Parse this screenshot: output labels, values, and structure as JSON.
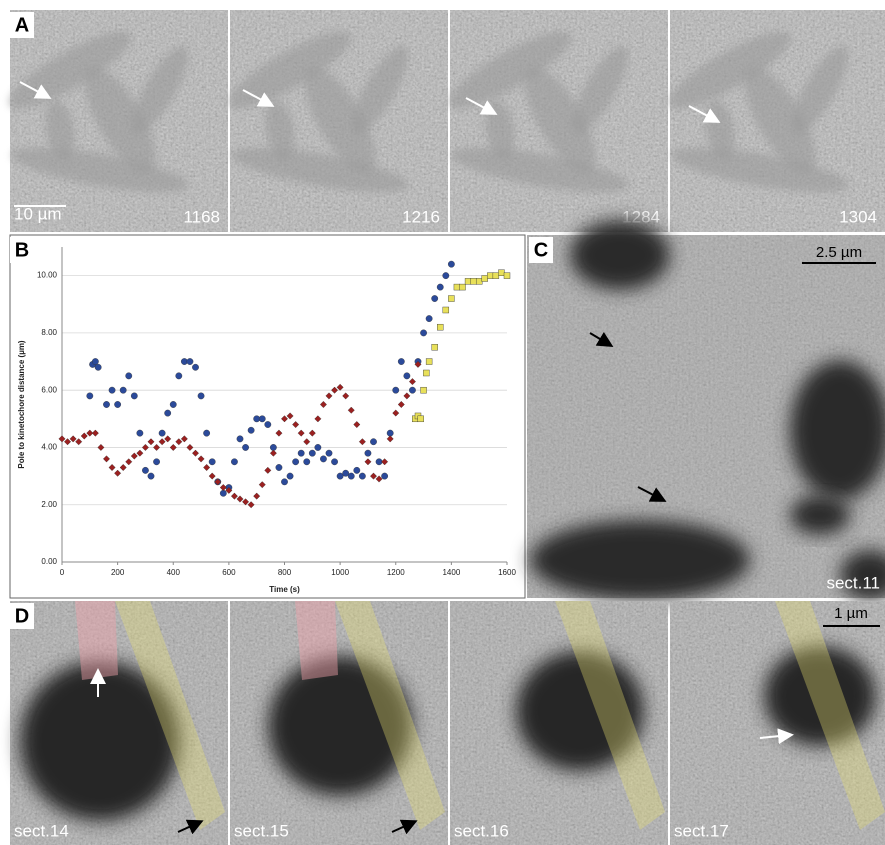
{
  "panels": {
    "a": {
      "label": "A",
      "scale_bar": "10 µm",
      "frames": [
        "1168",
        "1216",
        "1284",
        "1304"
      ]
    },
    "b": {
      "label": "B"
    },
    "c": {
      "label": "C",
      "scale_bar": "2.5 µm",
      "section": "sect.11"
    },
    "d": {
      "label": "D",
      "scale_bar": "1 µm",
      "sections": [
        "sect.14",
        "sect.15",
        "sect.16",
        "sect.17"
      ]
    }
  },
  "chart_data": {
    "type": "scatter",
    "xlabel": "Time (s)",
    "ylabel": "Pole to kinetochore distance (µm)",
    "xlim": [
      0,
      1600
    ],
    "xticks": [
      0,
      200,
      400,
      600,
      800,
      1000,
      1200,
      1400,
      1600
    ],
    "ylim": [
      0,
      11
    ],
    "yticks": [
      {
        "value": 0,
        "label": "0.00"
      },
      {
        "value": 2,
        "label": "2.00"
      },
      {
        "value": 4,
        "label": "4.00"
      },
      {
        "value": 6,
        "label": "6.00"
      },
      {
        "value": 8,
        "label": "8.00"
      },
      {
        "value": 10,
        "label": "10.00"
      }
    ],
    "grid": true,
    "series": [
      {
        "color": "#2b4a9a",
        "marker": "circle",
        "x": [
          100,
          110,
          120,
          130,
          160,
          180,
          200,
          220,
          240,
          260,
          280,
          300,
          320,
          340,
          360,
          380,
          400,
          420,
          440,
          460,
          480,
          500,
          520,
          540,
          560,
          580,
          600,
          620,
          640,
          660,
          680,
          700,
          720,
          740,
          760,
          780,
          800,
          820,
          840,
          860,
          880,
          900,
          920,
          940,
          960,
          980,
          1000,
          1020,
          1040,
          1060,
          1080,
          1100,
          1120,
          1140,
          1160,
          1180,
          1200,
          1220,
          1240,
          1260,
          1280,
          1300,
          1320,
          1340,
          1360,
          1380,
          1400
        ],
        "values": [
          5.8,
          6.9,
          7.0,
          6.8,
          5.5,
          6.0,
          5.5,
          6.0,
          6.5,
          5.8,
          4.5,
          3.2,
          3.0,
          3.5,
          4.5,
          5.2,
          5.5,
          6.5,
          7.0,
          7.0,
          6.8,
          5.8,
          4.5,
          3.5,
          2.8,
          2.4,
          2.6,
          3.5,
          4.3,
          4.0,
          4.6,
          5.0,
          5.0,
          4.8,
          4.0,
          3.3,
          2.8,
          3.0,
          3.5,
          3.8,
          3.5,
          3.8,
          4.0,
          3.6,
          3.8,
          3.5,
          3.0,
          3.1,
          3.0,
          3.2,
          3.0,
          3.8,
          4.2,
          3.5,
          3.0,
          4.5,
          6.0,
          7.0,
          6.5,
          6.0,
          7.0,
          8.0,
          8.5,
          9.2,
          9.6,
          10.0,
          10.4
        ]
      },
      {
        "color": "#9b2020",
        "marker": "diamond",
        "x": [
          0,
          20,
          40,
          60,
          80,
          100,
          120,
          140,
          160,
          180,
          200,
          220,
          240,
          260,
          280,
          300,
          320,
          340,
          360,
          380,
          400,
          420,
          440,
          460,
          480,
          500,
          520,
          540,
          560,
          580,
          600,
          620,
          640,
          660,
          680,
          700,
          720,
          740,
          760,
          780,
          800,
          820,
          840,
          860,
          880,
          900,
          920,
          940,
          960,
          980,
          1000,
          1020,
          1040,
          1060,
          1080,
          1100,
          1120,
          1140,
          1160,
          1180,
          1200,
          1220,
          1240,
          1260,
          1280
        ],
        "values": [
          4.3,
          4.2,
          4.3,
          4.2,
          4.4,
          4.5,
          4.5,
          4.0,
          3.6,
          3.3,
          3.1,
          3.3,
          3.5,
          3.7,
          3.8,
          4.0,
          4.2,
          4.0,
          4.2,
          4.3,
          4.0,
          4.2,
          4.3,
          4.0,
          3.8,
          3.6,
          3.3,
          3.0,
          2.8,
          2.6,
          2.5,
          2.3,
          2.2,
          2.1,
          2.0,
          2.3,
          2.7,
          3.2,
          3.8,
          4.5,
          5.0,
          5.1,
          4.8,
          4.5,
          4.2,
          4.5,
          5.0,
          5.5,
          5.8,
          6.0,
          6.1,
          5.8,
          5.3,
          4.8,
          4.2,
          3.5,
          3.0,
          2.9,
          3.5,
          4.3,
          5.2,
          5.5,
          5.8,
          6.3,
          6.9
        ]
      },
      {
        "color": "#e8e05a",
        "marker": "square",
        "x": [
          1270,
          1280,
          1290,
          1300,
          1310,
          1320,
          1340,
          1360,
          1380,
          1400,
          1420,
          1440,
          1460,
          1480,
          1500,
          1520,
          1540,
          1560,
          1580,
          1600
        ],
        "values": [
          5.0,
          5.1,
          5.0,
          6.0,
          6.6,
          7.0,
          7.5,
          8.2,
          8.8,
          9.2,
          9.6,
          9.6,
          9.8,
          9.8,
          9.8,
          9.9,
          10.0,
          10.0,
          10.1,
          10.0
        ]
      }
    ]
  }
}
